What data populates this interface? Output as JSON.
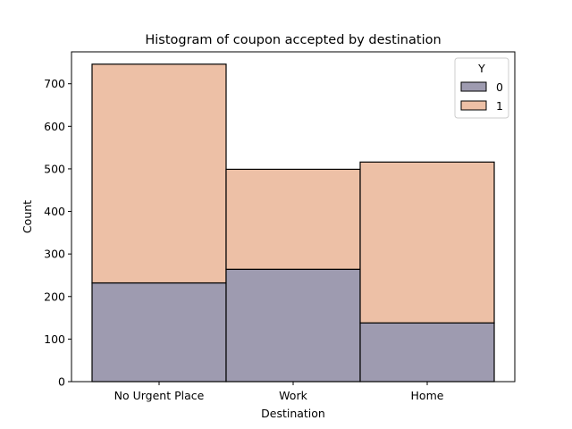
{
  "chart_data": {
    "type": "bar",
    "stacked": true,
    "title": "Histogram of coupon accepted by destination",
    "xlabel": "Destination",
    "ylabel": "Count",
    "categories": [
      "No Urgent Place",
      "Work",
      "Home"
    ],
    "ylim": [
      0,
      775
    ],
    "yticks": [
      0,
      100,
      200,
      300,
      400,
      500,
      600,
      700
    ],
    "grid": false,
    "legend": {
      "title": "Y",
      "placement": "top-right"
    },
    "series": [
      {
        "name": "0",
        "values": [
          232,
          264,
          138
        ],
        "color": "#9e9bb0"
      },
      {
        "name": "1",
        "values": [
          514,
          235,
          378
        ],
        "color": "#edc0a6"
      }
    ]
  }
}
